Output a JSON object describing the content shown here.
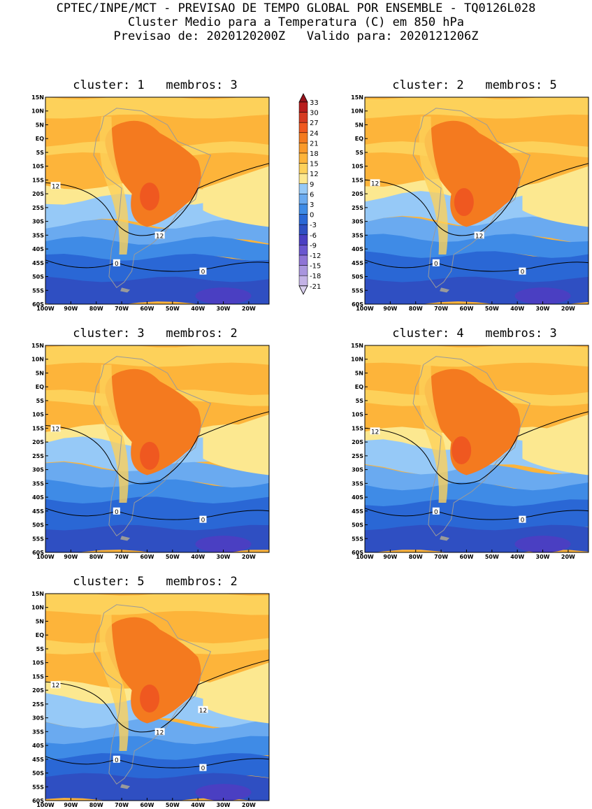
{
  "header": {
    "line1": "CPTEC/INPE/MCT - PREVISAO DE TEMPO GLOBAL POR ENSEMBLE - TQ0126L028",
    "line2": "Cluster Medio para a Temperatura (C) em 850 hPa",
    "line3": "Previsao de: 2020120200Z   Valido para: 2020121206Z"
  },
  "colors": {
    "levels": [
      "#d9cfee",
      "#c3b2e6",
      "#a995de",
      "#8f74d6",
      "#6a56cf",
      "#4a3fc2",
      "#2f4fc2",
      "#2a67d5",
      "#3f8be6",
      "#6aaaf0",
      "#96c9f7",
      "#fce890",
      "#fdd15a",
      "#fdb43a",
      "#fa9a2a",
      "#f47a1f",
      "#ef5820",
      "#d53a21",
      "#b81c1c",
      "#96121b"
    ],
    "contour": "#000000",
    "coast": "#9a9a9a"
  },
  "colorbar": {
    "labels": [
      "33",
      "30",
      "27",
      "24",
      "21",
      "18",
      "15",
      "12",
      "9",
      "6",
      "3",
      "0",
      "-3",
      "-6",
      "-9",
      "-12",
      "-15",
      "-18",
      "-21"
    ]
  },
  "axes": {
    "lat_labels": [
      "15N",
      "10N",
      "5N",
      "EQ",
      "5S",
      "10S",
      "15S",
      "20S",
      "25S",
      "30S",
      "35S",
      "40S",
      "45S",
      "50S",
      "55S",
      "60S"
    ],
    "lon_labels": [
      "100W",
      "90W",
      "80W",
      "70W",
      "60W",
      "50W",
      "40W",
      "30W",
      "20W"
    ]
  },
  "panels": [
    {
      "title": "cluster: 1   membros: 3",
      "labels_12": [
        "12",
        "12"
      ],
      "labels_0": [
        "0",
        "0"
      ]
    },
    {
      "title": "cluster: 2   membros: 5",
      "labels_12": [
        "12",
        "12"
      ],
      "labels_0": [
        "0",
        "0"
      ]
    },
    {
      "title": "cluster: 3   membros: 2",
      "labels_12": [
        "12"
      ],
      "labels_0": [
        "0",
        "0"
      ]
    },
    {
      "title": "cluster: 4   membros: 3",
      "labels_12": [
        "12"
      ],
      "labels_0": [
        "0",
        "0"
      ]
    },
    {
      "title": "cluster: 5   membros: 2",
      "labels_12": [
        "12",
        "12",
        "12"
      ],
      "labels_0": [
        "0",
        "0"
      ]
    }
  ]
}
